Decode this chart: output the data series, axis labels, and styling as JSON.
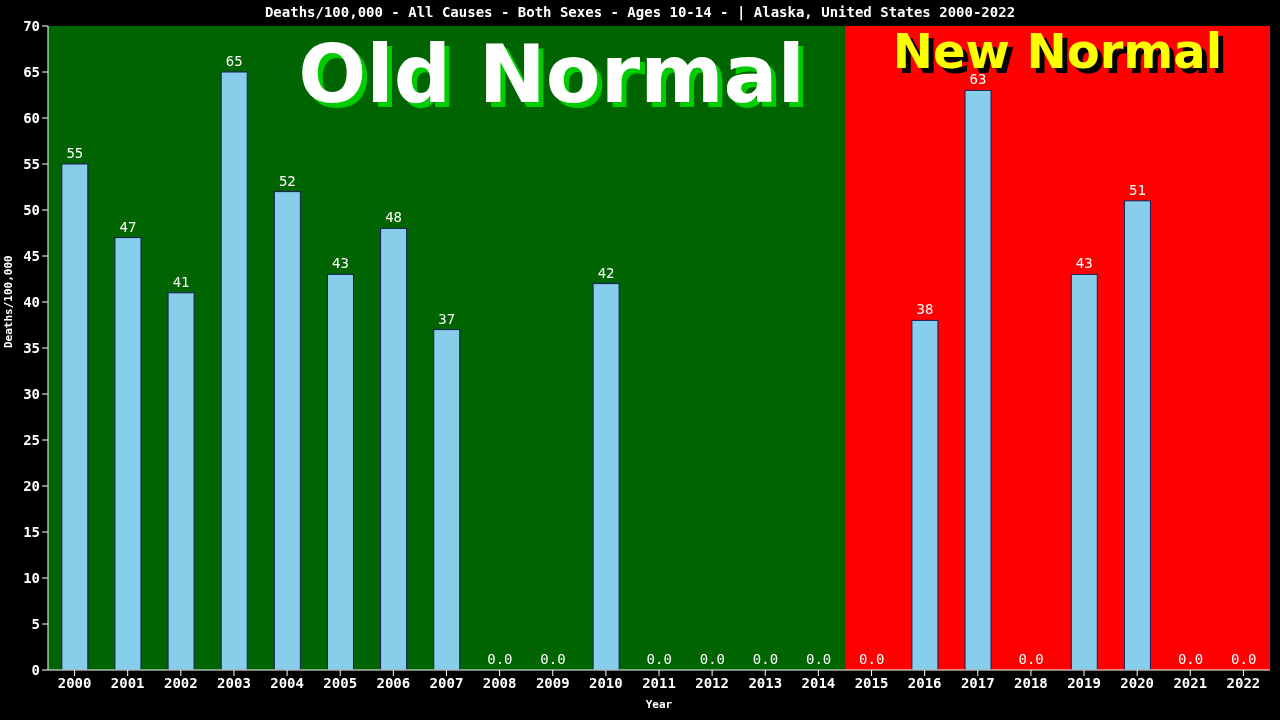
{
  "chart_data": {
    "type": "bar",
    "title": "Deaths/100,000 - All Causes - Both Sexes - Ages 10-14 -  | Alaska, United States 2000-2022",
    "xlabel": "Year",
    "ylabel": "Deaths/100,000",
    "categories": [
      "2000",
      "2001",
      "2002",
      "2003",
      "2004",
      "2005",
      "2006",
      "2007",
      "2008",
      "2009",
      "2010",
      "2011",
      "2012",
      "2013",
      "2014",
      "2015",
      "2016",
      "2017",
      "2018",
      "2019",
      "2020",
      "2021",
      "2022"
    ],
    "values": [
      55,
      47,
      41,
      65,
      52,
      43,
      48,
      37,
      0,
      0,
      42,
      0,
      0,
      0,
      0,
      0,
      38,
      63,
      0,
      43,
      51,
      0,
      0
    ],
    "value_labels": [
      "55",
      "47",
      "41",
      "65",
      "52",
      "43",
      "48",
      "37",
      "0.0",
      "0.0",
      "42",
      "0.0",
      "0.0",
      "0.0",
      "0.0",
      "0.0",
      "38",
      "63",
      "0.0",
      "43",
      "51",
      "0.0",
      "0.0"
    ],
    "color": "#87ceeb",
    "ylim": [
      0,
      70
    ],
    "yticks": [
      0,
      5,
      10,
      15,
      20,
      25,
      30,
      35,
      40,
      45,
      50,
      55,
      60,
      65,
      70
    ],
    "bands": [
      {
        "axis": "x",
        "from": "2000",
        "to": "2014",
        "label": "Old Normal",
        "color": "#006400"
      },
      {
        "axis": "x",
        "from": "2015",
        "to": "2022",
        "label": "New Normal",
        "color": "#ff0000"
      }
    ],
    "grid": false,
    "legend": false
  }
}
